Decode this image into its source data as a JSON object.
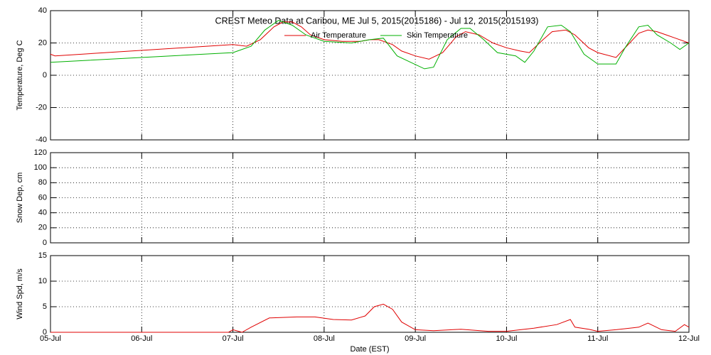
{
  "chart_data": [
    {
      "type": "line",
      "title": "CREST Meteo Data at Caribou, ME   Jul  5, 2015(2015186) - Jul 12, 2015(2015193)",
      "ylabel": "Temperature, Deg C",
      "xlim": [
        0,
        7
      ],
      "xticks": [
        0,
        1,
        2,
        3,
        4,
        5,
        6,
        7
      ],
      "ylim": [
        -40,
        40
      ],
      "yticks": [
        -40,
        -20,
        0,
        20,
        40
      ],
      "grid": true,
      "series": [
        {
          "name": "Air Temperature",
          "color": "#e00000",
          "x": [
            0,
            0.05,
            2.0,
            2.15,
            2.3,
            2.45,
            2.55,
            2.65,
            2.75,
            2.85,
            3.0,
            3.2,
            3.4,
            3.5,
            3.6,
            3.75,
            3.85,
            4.0,
            4.15,
            4.3,
            4.45,
            4.55,
            4.7,
            4.85,
            5.0,
            5.15,
            5.25,
            5.4,
            5.5,
            5.65,
            5.75,
            5.9,
            6.0,
            6.2,
            6.35,
            6.45,
            6.55,
            6.65,
            6.75,
            6.85,
            7.0
          ],
          "values": [
            13,
            12,
            19,
            18,
            22,
            30,
            33,
            33,
            30,
            25,
            22,
            21,
            21,
            22,
            22,
            19,
            15,
            12,
            10,
            14,
            24,
            27,
            25,
            20,
            17,
            15,
            14,
            22,
            27,
            28,
            25,
            17,
            14,
            11,
            20,
            26,
            28,
            27,
            25,
            23,
            20
          ]
        },
        {
          "name": "Skin Temperature",
          "color": "#00b000",
          "x": [
            0,
            2.0,
            2.05,
            2.2,
            2.35,
            2.5,
            2.65,
            2.8,
            3.0,
            3.3,
            3.5,
            3.65,
            3.8,
            3.95,
            4.1,
            4.2,
            4.35,
            4.5,
            4.6,
            4.75,
            4.9,
            5.1,
            5.2,
            5.3,
            5.45,
            5.6,
            5.7,
            5.85,
            6.0,
            6.2,
            6.3,
            6.45,
            6.55,
            6.65,
            6.8,
            6.9,
            7.0
          ],
          "values": [
            8,
            14,
            15,
            18,
            28,
            34,
            31,
            25,
            21,
            20,
            22,
            23,
            12,
            8,
            4,
            5,
            22,
            29,
            29,
            22,
            14,
            12,
            8,
            15,
            30,
            31,
            27,
            13,
            7,
            7,
            17,
            30,
            31,
            25,
            20,
            16,
            20
          ]
        }
      ]
    },
    {
      "type": "line",
      "ylabel": "Snow Dep, cm",
      "xlim": [
        0,
        7
      ],
      "xticks": [
        0,
        1,
        2,
        3,
        4,
        5,
        6,
        7
      ],
      "ylim": [
        0,
        120
      ],
      "yticks": [
        0,
        20,
        40,
        60,
        80,
        100,
        120
      ],
      "grid": true,
      "series": []
    },
    {
      "type": "line",
      "ylabel": "Wind Spd, m/s",
      "xlabel": "Date (EST)",
      "xlim": [
        0,
        7
      ],
      "xticks": [
        {
          "value": 0,
          "label": "05-Jul"
        },
        {
          "value": 1,
          "label": "06-Jul"
        },
        {
          "value": 2,
          "label": "07-Jul"
        },
        {
          "value": 3,
          "label": "08-Jul"
        },
        {
          "value": 4,
          "label": "09-Jul"
        },
        {
          "value": 5,
          "label": "10-Jul"
        },
        {
          "value": 6,
          "label": "11-Jul"
        },
        {
          "value": 7,
          "label": "12-Jul"
        }
      ],
      "ylim": [
        0,
        15
      ],
      "yticks": [
        0,
        5,
        10,
        15
      ],
      "grid": true,
      "series": [
        {
          "color": "#e00000",
          "x": [
            0,
            1.0,
            1.95,
            2.0,
            2.1,
            2.2,
            2.4,
            2.7,
            2.9,
            3.1,
            3.3,
            3.45,
            3.55,
            3.65,
            3.75,
            3.85,
            4.0,
            4.2,
            4.5,
            4.8,
            5.0,
            5.3,
            5.55,
            5.7,
            5.75,
            5.9,
            6.0,
            6.2,
            6.45,
            6.55,
            6.7,
            6.85,
            6.95,
            7.0
          ],
          "values": [
            0,
            0,
            0,
            0.5,
            0,
            1.0,
            2.8,
            3.0,
            3.0,
            2.5,
            2.4,
            3.2,
            5.0,
            5.5,
            4.5,
            2.0,
            0.5,
            0.3,
            0.6,
            0.2,
            0.2,
            0.8,
            1.5,
            2.5,
            1.0,
            0.6,
            0.2,
            0.5,
            1.0,
            1.8,
            0.5,
            0.2,
            1.5,
            1.0
          ]
        }
      ]
    }
  ]
}
